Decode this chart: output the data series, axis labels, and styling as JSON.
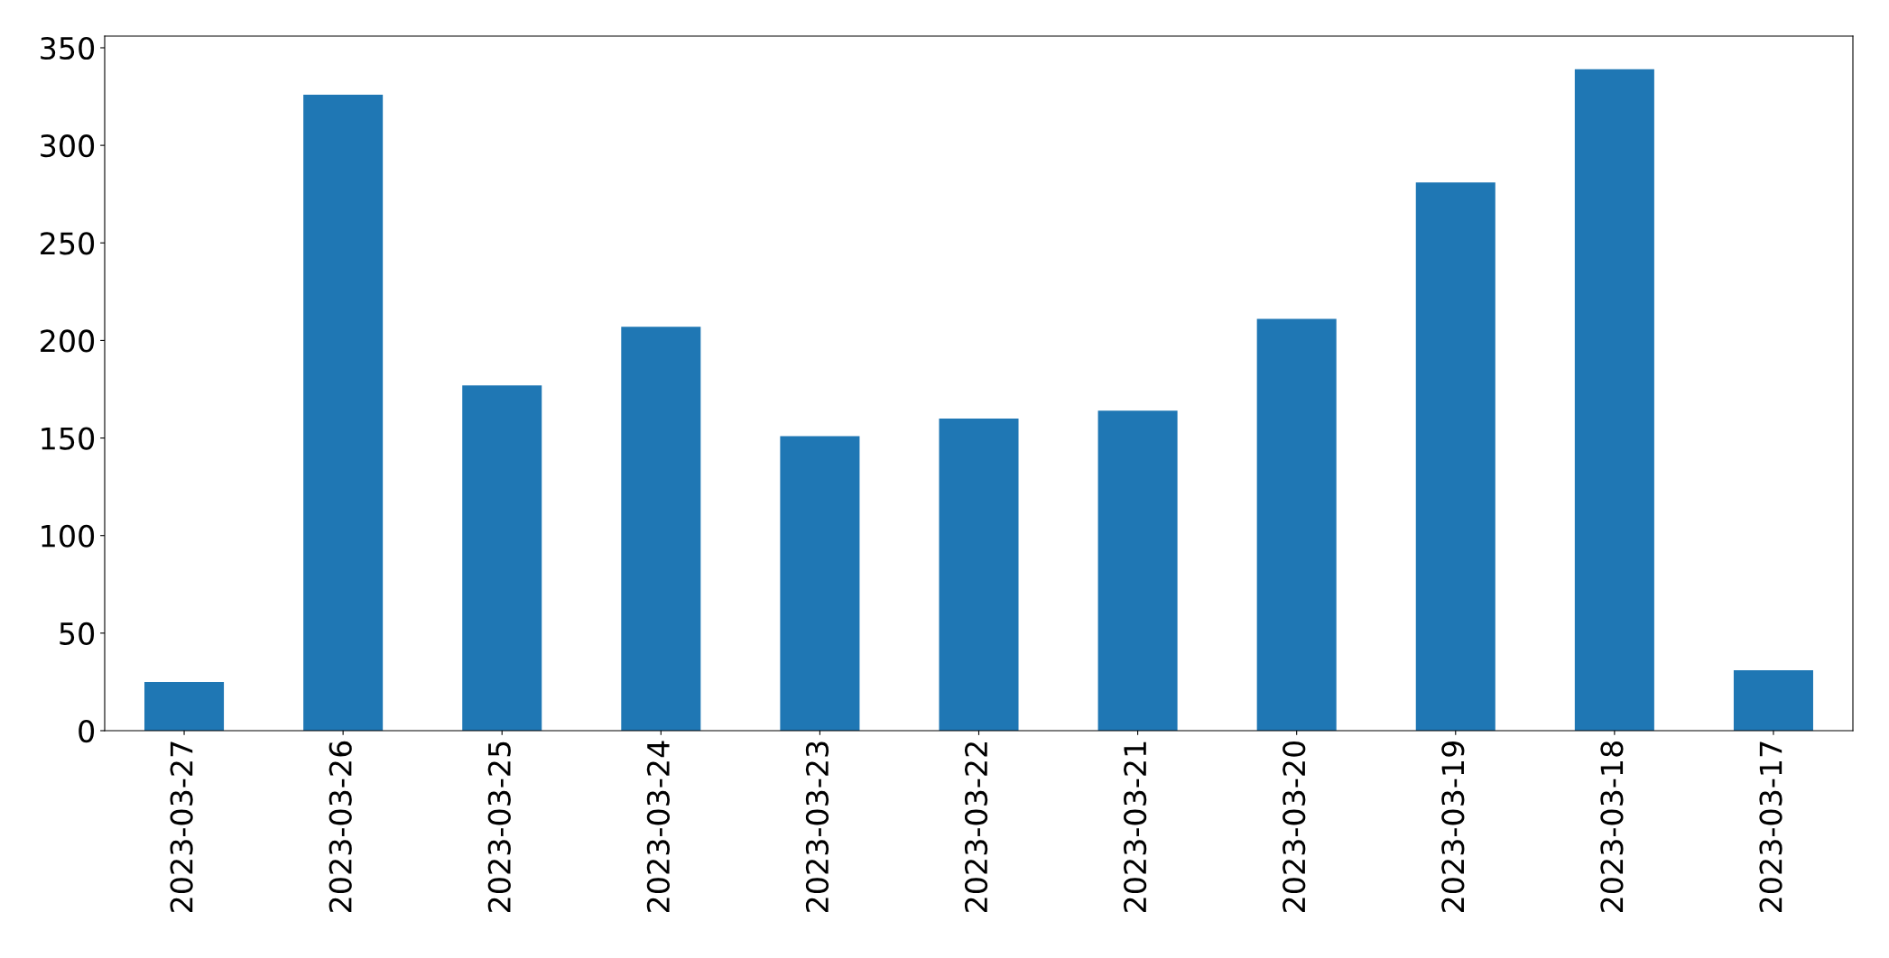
{
  "chart_data": {
    "type": "bar",
    "categories": [
      "2023-03-27",
      "2023-03-26",
      "2023-03-25",
      "2023-03-24",
      "2023-03-23",
      "2023-03-22",
      "2023-03-21",
      "2023-03-20",
      "2023-03-19",
      "2023-03-18",
      "2023-03-17"
    ],
    "values": [
      25,
      326,
      177,
      207,
      151,
      160,
      164,
      211,
      281,
      339,
      31
    ],
    "color": "#1f77b4",
    "ylim": [
      0,
      356
    ],
    "yticks": [
      0,
      50,
      100,
      150,
      200,
      250,
      300,
      350
    ],
    "grid": false
  }
}
